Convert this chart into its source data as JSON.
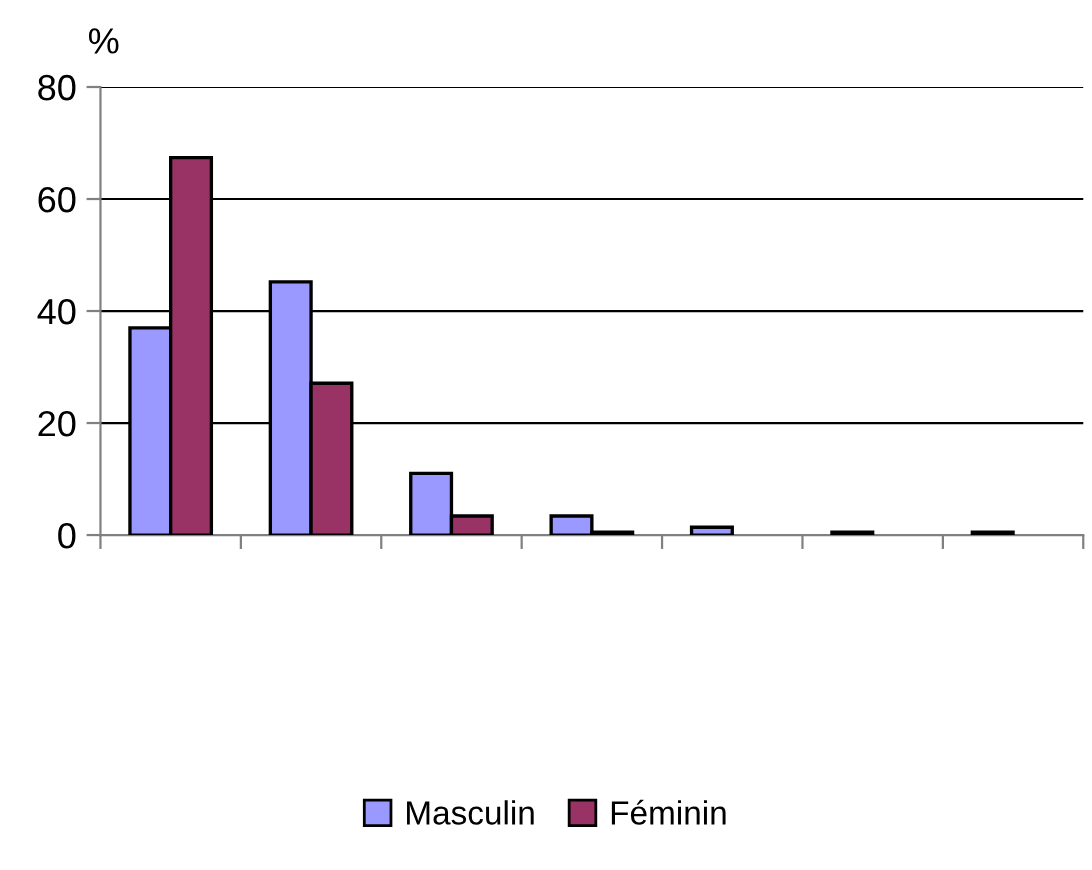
{
  "chart_data": {
    "type": "bar",
    "ylabel": "%",
    "categories": [
      null,
      null,
      null,
      null,
      null,
      null,
      null
    ],
    "series": [
      {
        "name": "Masculin",
        "color": "#9999ff",
        "values": [
          37,
          45.2,
          11,
          3.4,
          1.4,
          0.5,
          0.5
        ]
      },
      {
        "name": "Féminin",
        "color": "#993366",
        "values": [
          67.4,
          27.1,
          3.4,
          0.5,
          null,
          null,
          null
        ]
      }
    ],
    "ylim": [
      0,
      80
    ],
    "yticks": [
      0,
      20,
      40,
      60,
      80
    ],
    "grid": "y",
    "legend": "bottom"
  }
}
